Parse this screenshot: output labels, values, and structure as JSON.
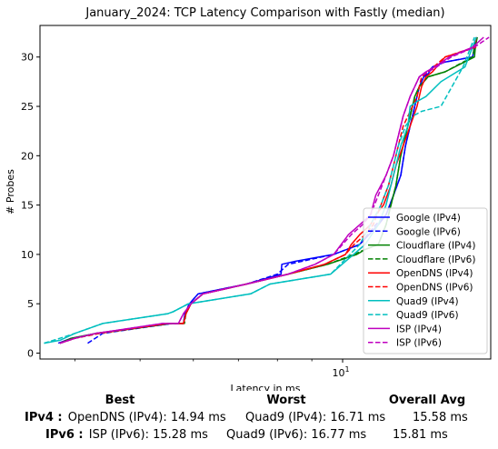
{
  "chart_data": {
    "type": "line",
    "title": "January_2024: TCP Latency Comparison with Fastly (median)",
    "xlabel": "Latency in ms",
    "ylabel": "# Probes",
    "xscale": "log",
    "xlim": [
      3.55,
      16.6
    ],
    "ylim": [
      -0.6,
      33.2
    ],
    "x_ticks": [
      {
        "value": 10,
        "base": "10",
        "exp": "1"
      }
    ],
    "y_ticks": [
      0,
      5,
      10,
      15,
      20,
      25,
      30
    ],
    "grid": false,
    "legend_position": "lower-right",
    "series": [
      {
        "name": "Google (IPv4)",
        "color": "#0000ff",
        "style": "solid",
        "x": [
          3.78,
          3.95,
          4.3,
          5.58,
          5.8,
          5.83,
          5.92,
          6.1,
          7.2,
          8.1,
          8.12,
          8.5,
          9.7,
          10.6,
          11.3,
          11.6,
          11.9,
          12.2,
          12.4,
          12.6,
          12.8,
          13.0,
          13.2,
          13.4,
          13.6,
          14.2,
          15.6,
          15.7,
          15.75,
          15.85
        ],
        "y": [
          1,
          1.5,
          2,
          3,
          3,
          4,
          5,
          6,
          7,
          8,
          9,
          9.3,
          10,
          11,
          13,
          14,
          16,
          18,
          21,
          23,
          25,
          27,
          28,
          28.3,
          29,
          29.5,
          30,
          31,
          31.5,
          32
        ]
      },
      {
        "name": "Google (IPv6)",
        "color": "#0000ff",
        "style": "dashed",
        "x": [
          4.18,
          4.4,
          5.58,
          5.8,
          5.83,
          5.92,
          6.1,
          7.2,
          8.0,
          8.3,
          9.7,
          10.6,
          11.2,
          11.6,
          11.9,
          12.2,
          12.4,
          12.6,
          12.8,
          13.0,
          13.2,
          13.6,
          14.2,
          15.6,
          15.7,
          15.8
        ],
        "y": [
          1,
          2,
          3,
          3,
          4,
          5,
          6,
          7,
          8,
          9,
          10,
          11,
          13,
          14,
          16,
          18,
          21,
          23,
          25,
          27,
          28,
          29,
          29.5,
          30,
          31,
          32
        ]
      },
      {
        "name": "Cloudflare (IPv4)",
        "color": "#008000",
        "style": "solid",
        "x": [
          3.8,
          3.95,
          4.3,
          5.55,
          5.8,
          5.85,
          5.95,
          6.2,
          7.2,
          8.3,
          9.5,
          10.5,
          10.8,
          11.3,
          11.6,
          11.8,
          12.0,
          12.2,
          12.4,
          12.6,
          12.8,
          13.0,
          13.4,
          14.2,
          15.7,
          15.75,
          15.85
        ],
        "y": [
          1,
          1.5,
          2,
          3,
          3,
          4,
          5,
          6,
          7,
          8,
          9,
          10,
          10.5,
          11,
          13,
          15,
          17,
          20,
          22,
          24,
          26,
          27,
          28,
          28.5,
          30,
          31,
          32
        ]
      },
      {
        "name": "Cloudflare (IPv6)",
        "color": "#008000",
        "style": "dashed",
        "x": [
          3.8,
          4.0,
          4.35,
          5.55,
          5.82,
          5.85,
          5.95,
          6.2,
          7.2,
          8.3,
          9.5,
          10.4,
          10.8,
          11.3,
          11.6,
          11.8,
          12.0,
          12.2,
          12.4,
          12.6,
          12.8,
          13.0,
          13.4,
          14.2,
          15.6,
          15.7,
          15.85
        ],
        "y": [
          1,
          1.5,
          2,
          3,
          3,
          4,
          5,
          6,
          7,
          8,
          9,
          10,
          10.5,
          11,
          13,
          15,
          17,
          20,
          22,
          24,
          26,
          27,
          28,
          28.5,
          30,
          31,
          32
        ]
      },
      {
        "name": "OpenDNS (IPv4)",
        "color": "#ff0000",
        "style": "solid",
        "x": [
          3.8,
          4.0,
          4.3,
          5.5,
          5.8,
          5.85,
          5.95,
          6.2,
          7.2,
          8.3,
          9.4,
          10.1,
          10.3,
          10.6,
          11.0,
          11.2,
          11.5,
          11.8,
          12.0,
          12.3,
          12.6,
          12.9,
          13.1,
          13.3,
          13.6,
          14.2,
          15.8
        ],
        "y": [
          1,
          1.5,
          2,
          3,
          3,
          4,
          5,
          6,
          7,
          8,
          9,
          10,
          11,
          12,
          13,
          14,
          15,
          17,
          19,
          21,
          23,
          25,
          27,
          28,
          28.5,
          30,
          31
        ]
      },
      {
        "name": "OpenDNS (IPv6)",
        "color": "#ff0000",
        "style": "dashed",
        "x": [
          3.8,
          4.0,
          4.35,
          5.5,
          5.8,
          5.85,
          5.95,
          6.2,
          7.2,
          8.3,
          9.4,
          10.1,
          10.4,
          10.8,
          11.1,
          11.4,
          11.7,
          11.9,
          12.1,
          12.3,
          12.5,
          12.7,
          12.9,
          13.1,
          13.4,
          14.2,
          15.7,
          15.8
        ],
        "y": [
          1,
          1.5,
          2,
          3,
          3,
          4,
          5,
          6,
          7,
          8,
          9,
          10,
          11,
          12,
          13,
          15,
          17,
          19,
          21,
          23,
          24,
          25,
          26,
          28,
          28.5,
          30,
          31,
          32
        ]
      },
      {
        "name": "Quad9 (IPv4)",
        "color": "#00bfbf",
        "style": "solid",
        "x": [
          3.6,
          3.8,
          4.0,
          4.4,
          5.5,
          5.6,
          5.9,
          7.3,
          7.8,
          9.6,
          10.8,
          11.3,
          11.6,
          11.8,
          12.0,
          12.2,
          12.5,
          12.6,
          12.9,
          13.3,
          14.0,
          15.2,
          15.6,
          15.8
        ],
        "y": [
          1,
          1.3,
          2,
          3,
          4,
          4.2,
          5,
          6,
          7,
          8,
          11,
          13,
          15,
          17,
          19,
          21,
          23,
          25,
          25.5,
          26,
          27.5,
          29,
          31,
          32
        ]
      },
      {
        "name": "Quad9 (IPv6)",
        "color": "#00bfbf",
        "style": "dashed",
        "x": [
          3.6,
          3.8,
          4.0,
          4.4,
          5.5,
          5.6,
          5.9,
          7.3,
          7.8,
          9.6,
          10.6,
          11.0,
          11.4,
          11.7,
          11.9,
          12.1,
          12.4,
          12.7,
          13.1,
          14.0,
          15.1,
          15.5,
          15.7
        ],
        "y": [
          1,
          1.5,
          2,
          3,
          4,
          4.2,
          5,
          6,
          7,
          8,
          11,
          13,
          15,
          17,
          19,
          21,
          23,
          24,
          24.5,
          25,
          29,
          31,
          32
        ]
      },
      {
        "name": "ISP (IPv4)",
        "color": "#bf00bf",
        "style": "solid",
        "x": [
          3.8,
          4.0,
          4.3,
          5.4,
          5.7,
          5.8,
          5.95,
          6.2,
          7.2,
          8.3,
          9.1,
          9.7,
          10.2,
          10.6,
          11.0,
          11.2,
          11.6,
          11.9,
          12.1,
          12.3,
          12.6,
          12.8,
          13.0,
          13.3,
          13.7,
          14.4,
          15.6,
          16.2
        ],
        "y": [
          1,
          1.5,
          2,
          3,
          3,
          4,
          5,
          6,
          7,
          8,
          9,
          10,
          12,
          13,
          14,
          16,
          18,
          20,
          22,
          24,
          26,
          27,
          28,
          28.5,
          29,
          30,
          31,
          32
        ]
      },
      {
        "name": "ISP (IPv6)",
        "color": "#bf00bf",
        "style": "dashed",
        "x": [
          3.8,
          4.0,
          4.3,
          5.4,
          5.7,
          5.8,
          5.95,
          6.2,
          7.2,
          8.3,
          9.1,
          9.7,
          10.3,
          10.7,
          11.0,
          11.3,
          11.6,
          11.9,
          12.1,
          12.3,
          12.6,
          12.8,
          13.0,
          13.4,
          13.8,
          14.5,
          15.7,
          16.5
        ],
        "y": [
          1,
          1.5,
          2,
          3,
          3,
          4,
          5,
          6,
          7,
          8,
          9,
          10,
          12,
          13,
          14,
          16,
          18,
          20,
          22,
          24,
          26,
          27,
          28,
          28.5,
          29,
          30,
          31,
          32
        ]
      }
    ]
  },
  "summary": {
    "headers": {
      "best": "Best",
      "worst": "Worst",
      "avg": "Overall Avg"
    },
    "rows": [
      {
        "label": "IPv4 :",
        "best": "OpenDNS (IPv4): 14.94 ms",
        "worst": "Quad9 (IPv4): 16.71 ms",
        "avg": "15.58 ms"
      },
      {
        "label": "IPv6 :",
        "best": "ISP (IPv6): 15.28 ms",
        "worst": "Quad9 (IPv6): 16.77 ms",
        "avg": "15.81 ms"
      }
    ]
  }
}
